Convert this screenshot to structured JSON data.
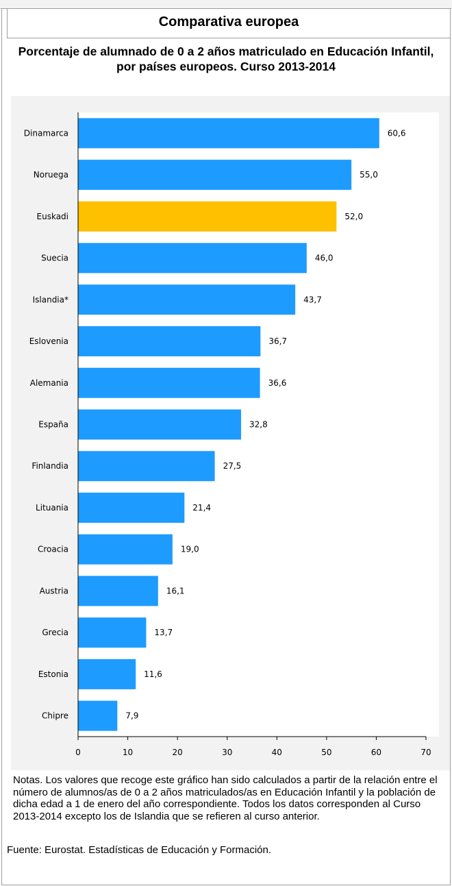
{
  "header": {
    "title": "Comparativa europea"
  },
  "chart_title": "Porcentaje de alumnado de 0 a 2 años matriculado en Educación Infantil, por países europeos. Curso 2013-2014",
  "chart_data": {
    "type": "bar",
    "orientation": "horizontal",
    "categories": [
      "Dinamarca",
      "Noruega",
      "Euskadi",
      "Suecia",
      "Islandia*",
      "Eslovenia",
      "Alemania",
      "España",
      "Finlandia",
      "Lituania",
      "Croacia",
      "Austria",
      "Grecia",
      "Estonia",
      "Chipre"
    ],
    "values": [
      60.6,
      55.0,
      52.0,
      46.0,
      43.7,
      36.7,
      36.6,
      32.8,
      27.5,
      21.4,
      19.0,
      16.1,
      13.7,
      11.6,
      7.9
    ],
    "value_labels": [
      "60,6",
      "55,0",
      "52,0",
      "46,0",
      "43,7",
      "36,7",
      "36,6",
      "32,8",
      "27,5",
      "21,4",
      "19,0",
      "16,1",
      "13,7",
      "11,6",
      "7,9"
    ],
    "highlight": "Euskadi",
    "colors": {
      "bar": "#1e9bff",
      "highlight": "#ffc000",
      "background": "#f2f2f2",
      "plot": "#ffffff"
    },
    "xlim": [
      0,
      70
    ],
    "xticks": [
      0,
      10,
      20,
      30,
      40,
      50,
      60,
      70
    ],
    "grid": false,
    "title": "Porcentaje de alumnado de 0 a 2 años matriculado en Educación Infantil, por países europeos. Curso 2013-2014",
    "xlabel": "",
    "ylabel": ""
  },
  "notes": "Notas. Los valores que recoge este gráfico han sido calculados a partir de la relación entre el número de alumnos/as de 0 a 2 años matriculados/as en Educación Infantil y la población de dicha edad a 1 de enero del año correspondiente. Todos los datos corresponden al Curso 2013-2014 excepto los de Islandia que se refieren al curso anterior.",
  "source": "Fuente: Eurostat. Estadísticas de Educación y Formación."
}
